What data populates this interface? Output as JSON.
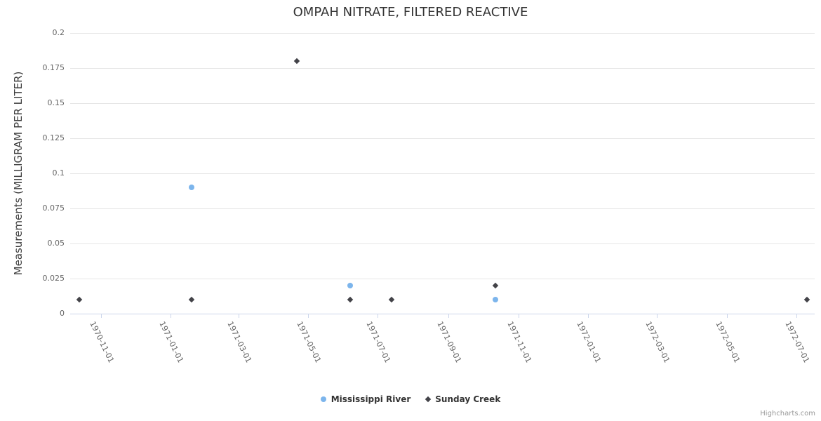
{
  "credits": "Highcharts.com",
  "colors": {
    "background": "#ffffff",
    "grid_line": "#e6e6e6",
    "axis_line": "#ccd6eb",
    "title_text": "#333333",
    "axis_label_text": "#666666",
    "axis_title_text": "#3d3d3d",
    "legend_text": "#333333",
    "credits_text": "#999999",
    "mississippi_river": "#7cb5ec",
    "sunday_creek": "#434348"
  },
  "chart_data": {
    "type": "scatter",
    "title": "OMPAH NITRATE, FILTERED REACTIVE",
    "xlabel": "",
    "ylabel": "Measurements (MILLIGRAM PER LITER)",
    "ylim": [
      0,
      0.2
    ],
    "y_ticks": [
      0,
      0.025,
      0.05,
      0.075,
      0.1,
      0.125,
      0.15,
      0.175,
      0.2
    ],
    "y_tick_labels": [
      "0",
      "0.025",
      "0.05",
      "0.075",
      "0.1",
      "0.125",
      "0.15",
      "0.175",
      "0.2"
    ],
    "x_tick_labels": [
      "1970-11-01",
      "1971-01-01",
      "1971-03-01",
      "1971-05-01",
      "1971-07-01",
      "1971-09-01",
      "1971-11-01",
      "1972-01-01",
      "1972-03-01",
      "1972-05-01",
      "1972-07-01"
    ],
    "x_range": [
      "1970-10-05",
      "1972-07-17"
    ],
    "grid": true,
    "legend_position": "bottom",
    "series": [
      {
        "name": "Mississippi River",
        "marker": "circle",
        "color": "#7cb5ec",
        "points": [
          {
            "x": "1971-01-19",
            "y": 0.09
          },
          {
            "x": "1971-06-07",
            "y": 0.02
          },
          {
            "x": "1971-10-12",
            "y": 0.01
          }
        ]
      },
      {
        "name": "Sunday Creek",
        "marker": "diamond",
        "color": "#434348",
        "points": [
          {
            "x": "1970-10-13",
            "y": 0.01
          },
          {
            "x": "1971-01-19",
            "y": 0.01
          },
          {
            "x": "1971-04-21",
            "y": 0.18
          },
          {
            "x": "1971-06-07",
            "y": 0.01
          },
          {
            "x": "1971-07-13",
            "y": 0.01
          },
          {
            "x": "1971-10-12",
            "y": 0.02
          },
          {
            "x": "1972-07-10",
            "y": 0.01
          }
        ]
      }
    ]
  }
}
